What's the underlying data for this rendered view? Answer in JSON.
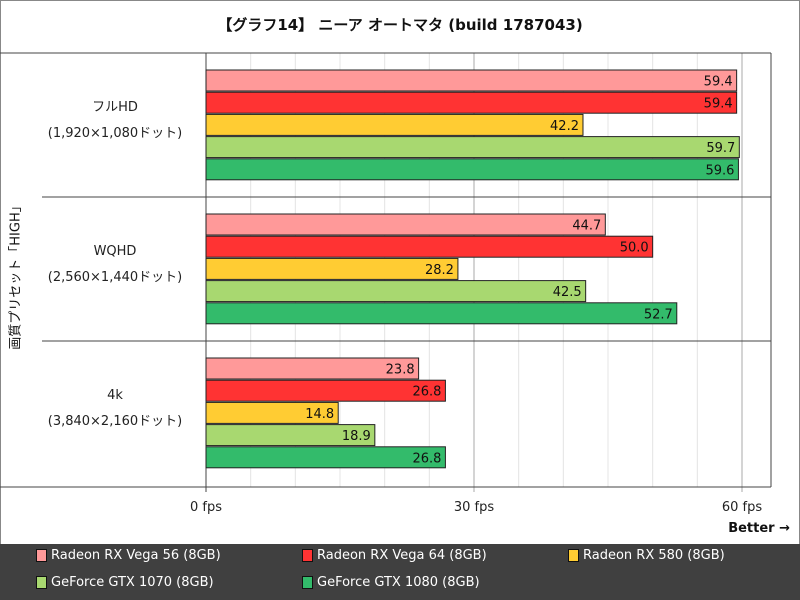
{
  "chart_data": {
    "type": "bar",
    "orientation": "horizontal",
    "title": "【グラフ14】 ニーア オートマタ (build 1787043)",
    "ylabel": "画質プリセット「HIGH」",
    "xlabel": "",
    "categories": [
      [
        "フルHD",
        "(1,920×1,080ドット)"
      ],
      [
        "WQHD",
        "(2,560×1,440ドット)"
      ],
      [
        "4k",
        "(3,840×2,160ドット)"
      ]
    ],
    "series": [
      {
        "name": "Radeon RX Vega 56 (8GB)",
        "color": "#ff9999",
        "values": [
          59.4,
          44.7,
          23.8
        ]
      },
      {
        "name": "Radeon RX Vega 64 (8GB)",
        "color": "#ff3333",
        "values": [
          59.4,
          50.0,
          26.8
        ]
      },
      {
        "name": "Radeon RX 580 (8GB)",
        "color": "#ffcc33",
        "values": [
          42.2,
          28.2,
          14.8
        ]
      },
      {
        "name": "GeForce GTX 1070 (8GB)",
        "color": "#a8d870",
        "values": [
          59.7,
          42.5,
          18.9
        ]
      },
      {
        "name": "GeForce GTX 1080 (8GB)",
        "color": "#33bb6b",
        "values": [
          59.6,
          52.7,
          26.8
        ]
      }
    ],
    "xlim": [
      0,
      63
    ],
    "xticks": [
      0,
      30,
      60
    ],
    "xtick_labels": [
      "0 fps",
      "30 fps",
      "60 fps"
    ],
    "grid": true,
    "legend_position": "bottom",
    "annotation": "Better →"
  }
}
